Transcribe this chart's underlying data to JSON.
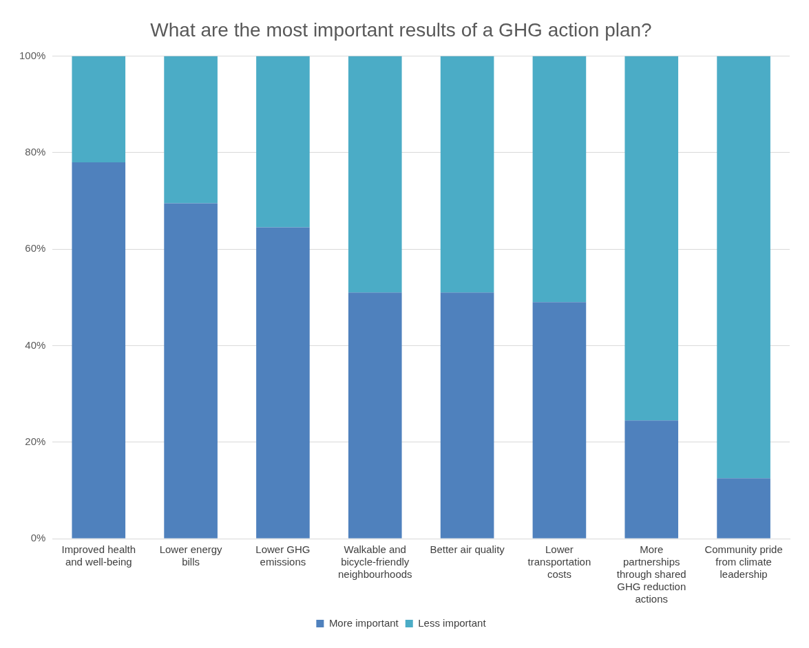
{
  "chart_data": {
    "type": "bar",
    "title": "What are the most important results of a GHG action plan?",
    "categories": [
      "Improved health and well-being",
      "Lower energy bills",
      "Lower GHG emissions",
      "Walkable and bicycle-friendly neighbourhoods",
      "Better air quality",
      "Lower transportation costs",
      "More partnerships through shared GHG reduction actions",
      "Community pride from climate leadership"
    ],
    "series": [
      {
        "name": "More important",
        "color": "#4f81bd",
        "values": [
          78,
          69.5,
          64.5,
          51,
          51,
          49,
          24.5,
          12.5
        ]
      },
      {
        "name": "Less important",
        "color": "#4bacc6",
        "values": [
          22,
          30.5,
          35.5,
          49,
          49,
          51,
          75.5,
          87.5
        ]
      }
    ],
    "stacked": true,
    "ylim": [
      0,
      100
    ],
    "yticks": [
      {
        "value": 0,
        "label": "0%"
      },
      {
        "value": 20,
        "label": "20%"
      },
      {
        "value": 40,
        "label": "40%"
      },
      {
        "value": 60,
        "label": "60%"
      },
      {
        "value": 80,
        "label": "80%"
      },
      {
        "value": 100,
        "label": "100%"
      }
    ],
    "grid": "y",
    "legend": "bottom"
  }
}
